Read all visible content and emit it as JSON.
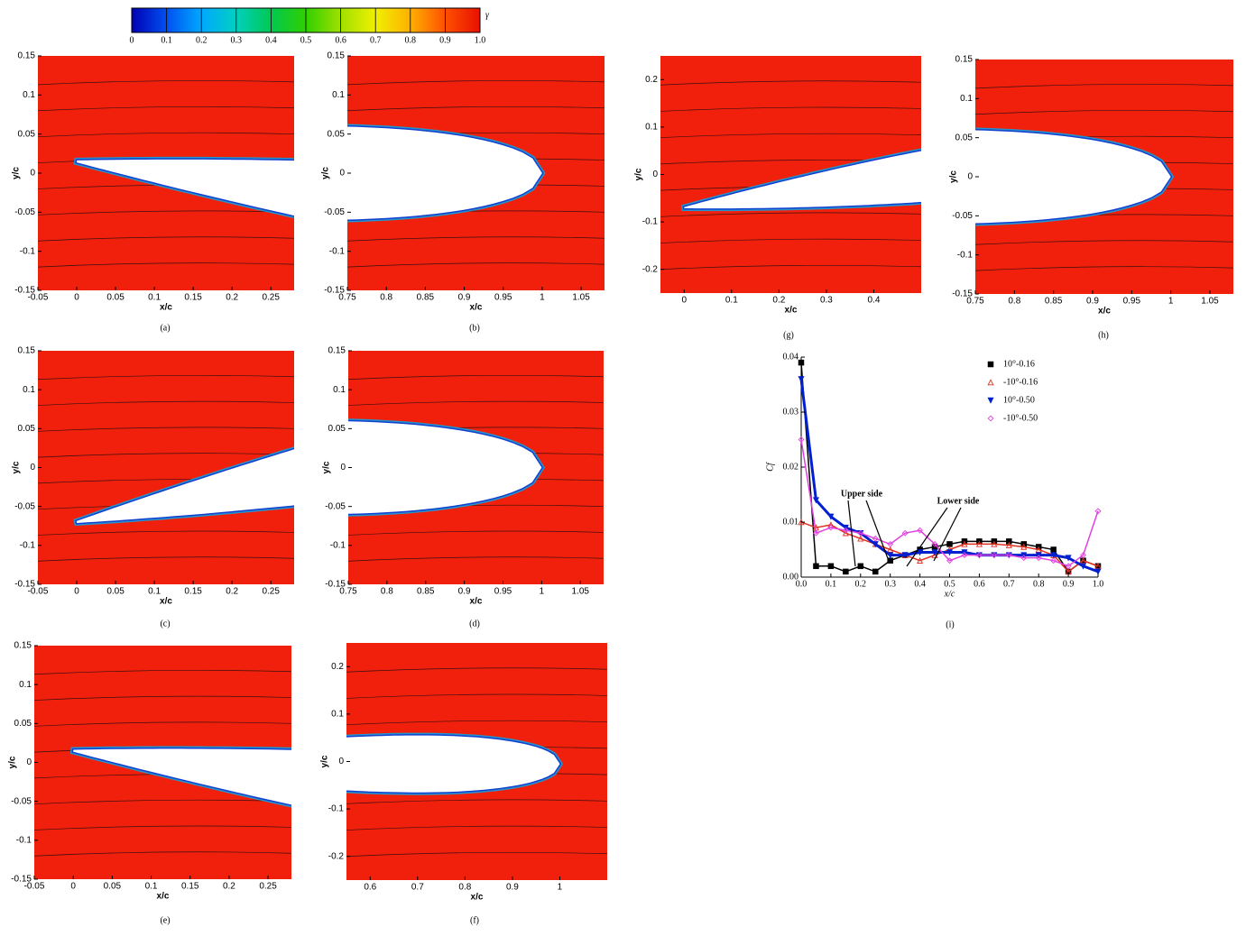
{
  "chart_data": [
    {
      "type": "colorbar",
      "label": "γ",
      "xlim": [
        0,
        1
      ],
      "xticks": [
        0,
        0.1,
        0.2,
        0.3,
        0.4,
        0.5,
        0.6,
        0.7,
        0.8,
        0.9,
        {
          "value": 1,
          "label": "1.0"
        }
      ],
      "colors": [
        "#0000b4",
        "#0050f0",
        "#00a8ff",
        "#00d0c0",
        "#00c850",
        "#30d000",
        "#a0e000",
        "#f0f000",
        "#ffb000",
        "#ff5000",
        "#e81000"
      ]
    },
    {
      "type": "contour",
      "caption": "(a)",
      "xlabel": "x/c",
      "ylabel": "y/c",
      "xlim": [
        -0.05,
        0.28
      ],
      "ylim": [
        -0.15,
        0.15
      ],
      "xticks": [
        -0.05,
        0,
        0.05,
        0.1,
        0.15,
        0.2,
        0.25
      ],
      "yticks": [
        -0.15,
        -0.1,
        -0.05,
        0,
        0.05,
        0.1,
        0.15
      ]
    },
    {
      "type": "contour",
      "caption": "(b)",
      "xlabel": "x/c",
      "ylabel": "y/c",
      "xlim": [
        0.75,
        1.08
      ],
      "ylim": [
        -0.15,
        0.15
      ],
      "xticks": [
        0.75,
        0.8,
        0.85,
        0.9,
        0.95,
        1,
        1.05
      ],
      "yticks": [
        -0.15,
        -0.1,
        -0.05,
        0,
        0.05,
        0.1,
        0.15
      ]
    },
    {
      "type": "contour",
      "caption": "(c)",
      "xlabel": "x/c",
      "ylabel": "y/c",
      "xlim": [
        -0.05,
        0.28
      ],
      "ylim": [
        -0.15,
        0.15
      ],
      "xticks": [
        -0.05,
        0,
        0.05,
        0.1,
        0.15,
        0.2,
        0.25
      ],
      "yticks": [
        -0.15,
        -0.1,
        -0.05,
        0,
        0.05,
        0.1,
        0.15
      ]
    },
    {
      "type": "contour",
      "caption": "(d)",
      "xlabel": "x/c",
      "ylabel": "y/c",
      "xlim": [
        0.75,
        1.08
      ],
      "ylim": [
        -0.15,
        0.15
      ],
      "xticks": [
        0.75,
        0.8,
        0.85,
        0.9,
        0.95,
        1,
        1.05
      ],
      "yticks": [
        -0.15,
        -0.1,
        -0.05,
        0,
        0.05,
        0.1,
        0.15
      ]
    },
    {
      "type": "contour",
      "caption": "(e)",
      "xlabel": "x/c",
      "ylabel": "y/c",
      "xlim": [
        -0.05,
        0.28
      ],
      "ylim": [
        -0.15,
        0.15
      ],
      "xticks": [
        -0.05,
        0,
        0.05,
        0.1,
        0.15,
        0.2,
        0.25
      ],
      "yticks": [
        -0.15,
        -0.1,
        -0.05,
        0,
        0.05,
        0.1,
        0.15
      ]
    },
    {
      "type": "contour",
      "caption": "(f)",
      "xlabel": "x/c",
      "ylabel": "y/c",
      "xlim": [
        0.55,
        1.1
      ],
      "ylim": [
        -0.25,
        0.25
      ],
      "xticks": [
        0.6,
        0.7,
        0.8,
        0.9,
        1
      ],
      "yticks": [
        -0.2,
        -0.1,
        0,
        0.1,
        0.2
      ]
    },
    {
      "type": "contour",
      "caption": "(g)",
      "xlabel": "x/c",
      "ylabel": "y/c",
      "xlim": [
        -0.05,
        0.5
      ],
      "ylim": [
        -0.25,
        0.25
      ],
      "xticks": [
        0,
        0.1,
        0.2,
        0.3,
        0.4
      ],
      "yticks": [
        -0.2,
        -0.1,
        0,
        0.1,
        0.2
      ]
    },
    {
      "type": "contour",
      "caption": "(h)",
      "xlabel": "x/c",
      "ylabel": "y/c",
      "xlim": [
        0.75,
        1.08
      ],
      "ylim": [
        -0.15,
        0.15
      ],
      "xticks": [
        0.75,
        0.8,
        0.85,
        0.9,
        0.95,
        1,
        1.05
      ],
      "yticks": [
        -0.15,
        -0.1,
        -0.05,
        0,
        0.05,
        0.1,
        0.15
      ]
    },
    {
      "type": "line",
      "caption": "(i)",
      "xlabel": "x/c",
      "ylabel": "Cf",
      "xlim": [
        0,
        1
      ],
      "ylim": [
        0,
        0.04
      ],
      "legend": "top-right",
      "xticks": [
        {
          "value": 0,
          "label": "0.0"
        },
        0.1,
        0.2,
        0.3,
        0.4,
        0.5,
        0.6,
        0.7,
        0.8,
        0.9,
        {
          "value": 1,
          "label": "1.0"
        }
      ],
      "yticks": [
        {
          "value": 0,
          "label": "0.00"
        },
        0.01,
        0.02,
        0.03,
        0.04
      ],
      "annotations": [
        "Upper side",
        "Lower side"
      ],
      "x": [
        0,
        0.05,
        0.1,
        0.15,
        0.2,
        0.25,
        0.3,
        0.35,
        0.4,
        0.45,
        0.5,
        0.55,
        0.6,
        0.65,
        0.7,
        0.75,
        0.8,
        0.85,
        0.9,
        0.95,
        1
      ],
      "series": [
        {
          "name": "10°-0.16",
          "color": "#000000",
          "marker": "square",
          "values": [
            0.039,
            0.002,
            0.002,
            0.001,
            0.002,
            0.001,
            0.003,
            0.004,
            0.005,
            0.0055,
            0.006,
            0.0065,
            0.0065,
            0.0065,
            0.0065,
            0.006,
            0.0055,
            0.005,
            0.001,
            0.003,
            0.002
          ]
        },
        {
          "name": "-10°-0.16",
          "color": "#e03020",
          "marker": "triangle",
          "values": [
            0.01,
            0.009,
            0.0095,
            0.008,
            0.007,
            0.006,
            0.005,
            0.004,
            0.003,
            0.004,
            0.005,
            0.006,
            0.006,
            0.006,
            0.0058,
            0.0055,
            0.005,
            0.004,
            0.001,
            0.003,
            0.002
          ]
        },
        {
          "name": "10°-0.50",
          "color": "#0020d0",
          "marker": "down-triangle",
          "values": [
            0.036,
            0.014,
            0.011,
            0.009,
            0.008,
            0.006,
            0.004,
            0.004,
            0.0045,
            0.0045,
            0.0045,
            0.0045,
            0.004,
            0.004,
            0.004,
            0.004,
            0.004,
            0.004,
            0.0035,
            0.002,
            0.001
          ]
        },
        {
          "name": "-10°-0.50",
          "color": "#e040e0",
          "marker": "diamond",
          "values": [
            0.025,
            0.008,
            0.009,
            0.0085,
            0.008,
            0.007,
            0.006,
            0.008,
            0.0085,
            0.006,
            0.003,
            0.004,
            0.004,
            0.004,
            0.004,
            0.0035,
            0.0035,
            0.003,
            0.002,
            0.004,
            0.012
          ]
        }
      ]
    }
  ]
}
